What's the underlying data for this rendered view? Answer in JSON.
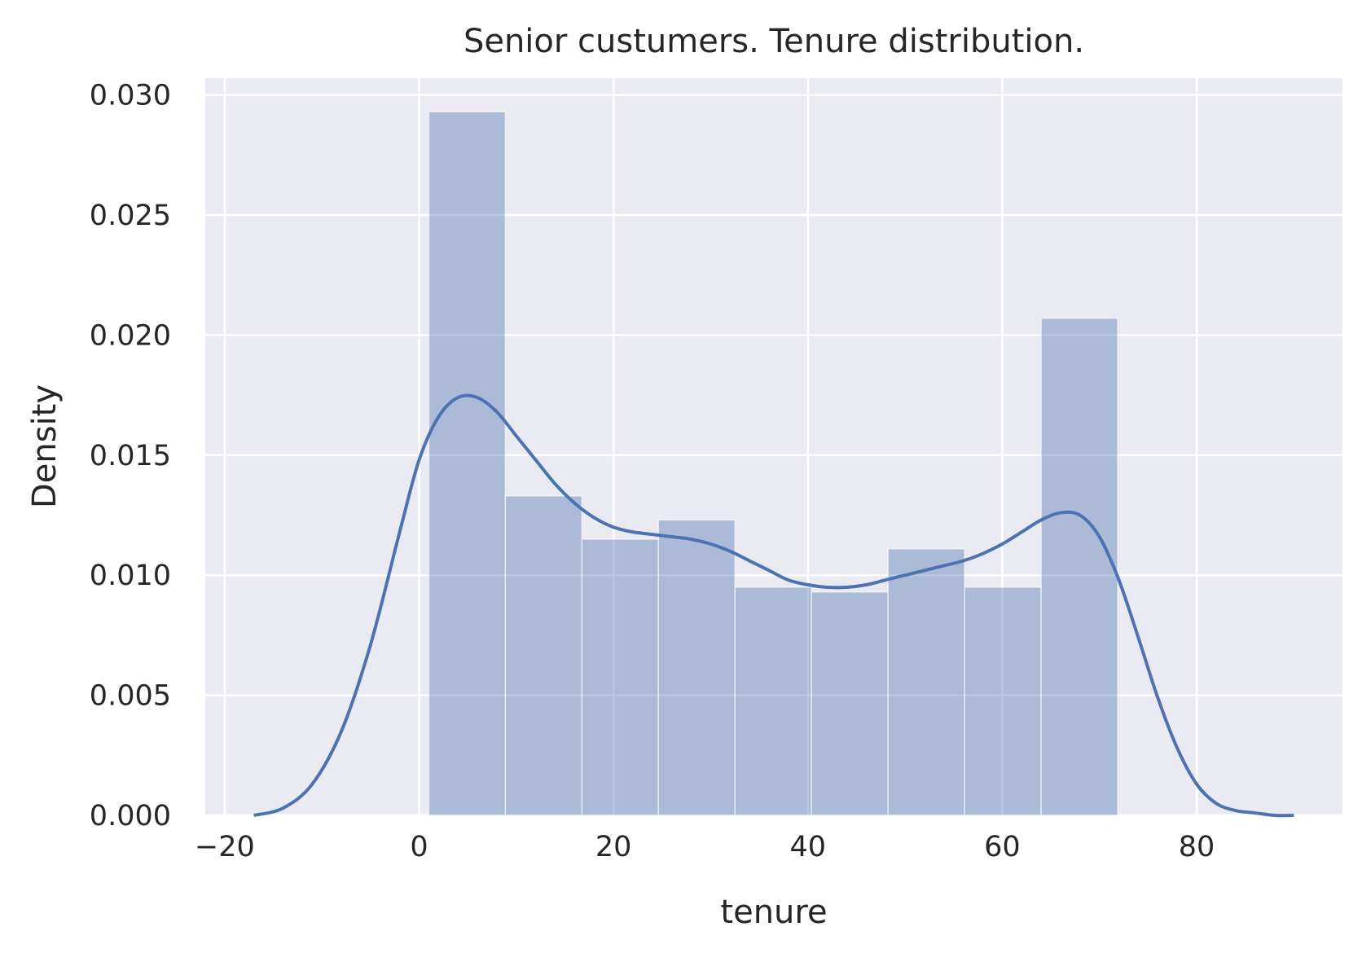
{
  "chart_data": {
    "type": "bar",
    "title": "Senior custumers. Tenure distribution.",
    "xlabel": "tenure",
    "ylabel": "Density",
    "xlim": [
      -22,
      95
    ],
    "ylim": [
      0,
      0.0307
    ],
    "xticks": [
      -20,
      0,
      20,
      40,
      60,
      80
    ],
    "xtick_labels": [
      "−20",
      "0",
      "20",
      "40",
      "60",
      "80"
    ],
    "yticks": [
      0,
      0.005,
      0.01,
      0.015,
      0.02,
      0.025,
      0.03
    ],
    "ytick_labels": [
      "0.000",
      "0.005",
      "0.010",
      "0.015",
      "0.020",
      "0.025",
      "0.030"
    ],
    "grid": true,
    "histogram": {
      "bin_edges": [
        1,
        8.875,
        16.75,
        24.625,
        32.5,
        40.375,
        48.25,
        56.125,
        64,
        71.875
      ],
      "values": [
        0.0293,
        0.0133,
        0.0115,
        0.0123,
        0.0095,
        0.0093,
        0.0111,
        0.0095,
        0.0207
      ]
    },
    "kde": {
      "x": [
        -17,
        -14,
        -11,
        -8,
        -5,
        -2,
        0,
        2,
        4,
        6,
        8,
        10,
        12,
        14,
        16,
        18,
        20,
        22,
        24,
        26,
        28,
        30,
        32,
        34,
        36,
        38,
        40,
        42,
        44,
        46,
        48,
        50,
        52,
        54,
        56,
        58,
        60,
        62,
        64,
        66,
        68,
        70,
        72,
        74,
        76,
        78,
        80,
        82,
        84,
        86,
        88,
        90
      ],
      "y": [
        0.0,
        0.0003,
        0.0013,
        0.0035,
        0.0071,
        0.0118,
        0.0148,
        0.0166,
        0.0174,
        0.0174,
        0.0168,
        0.0158,
        0.0148,
        0.0138,
        0.013,
        0.0124,
        0.012,
        0.0118,
        0.0117,
        0.0116,
        0.0115,
        0.0113,
        0.011,
        0.0106,
        0.0102,
        0.0098,
        0.0096,
        0.0095,
        0.0095,
        0.0096,
        0.0098,
        0.01,
        0.0102,
        0.0104,
        0.0106,
        0.0109,
        0.0113,
        0.0118,
        0.0123,
        0.0126,
        0.0125,
        0.0116,
        0.0098,
        0.0074,
        0.0049,
        0.0028,
        0.0013,
        0.0005,
        0.0002,
        0.0001,
        0.0,
        0.0
      ]
    },
    "colors": {
      "background": "#eaeaf2",
      "grid": "#ffffff",
      "bar_fill": "#4c72b0",
      "bar_opacity": 0.4,
      "line": "#4c72b0"
    }
  }
}
